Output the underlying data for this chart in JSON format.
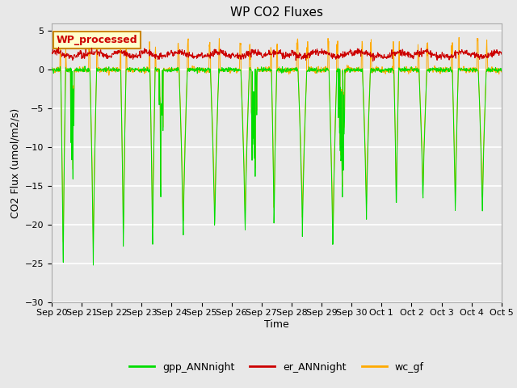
{
  "title": "WP CO2 Fluxes",
  "xlabel": "Time",
  "ylabel": "CO2 Flux (umol/m2/s)",
  "ylim": [
    -30,
    6
  ],
  "yticks": [
    -30,
    -25,
    -20,
    -15,
    -10,
    -5,
    0,
    5
  ],
  "annotation_text": "WP_processed",
  "annotation_color": "#cc0000",
  "annotation_bg": "#ffffcc",
  "annotation_border": "#cc8800",
  "colors": {
    "gpp_ANNnight": "#00dd00",
    "er_ANNnight": "#cc0000",
    "wc_gf": "#ffaa00"
  },
  "bg_color": "#e8e8e8",
  "grid_color": "#ffffff",
  "xtick_labels": [
    "Sep 20",
    "Sep 21",
    "Sep 22",
    "Sep 23",
    "Sep 24",
    "Sep 25",
    "Sep 26",
    "Sep 27",
    "Sep 28",
    "Sep 29",
    "Sep 30",
    "Oct 1",
    "Oct 2",
    "Oct 3",
    "Oct 4",
    "Oct 5"
  ],
  "n_days": 15,
  "points_per_day": 96,
  "title_fontsize": 11,
  "label_fontsize": 9,
  "tick_fontsize": 8
}
